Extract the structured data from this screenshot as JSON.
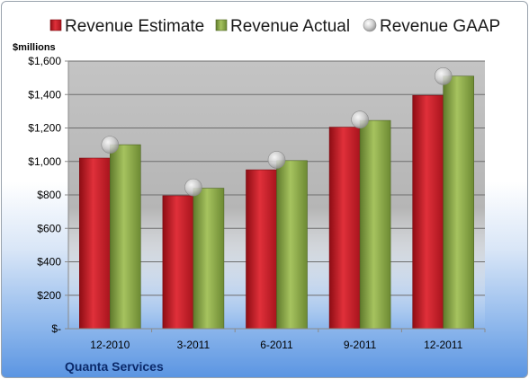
{
  "chart_data": {
    "type": "bar",
    "ylabel": "$millions",
    "company": "Quanta Services",
    "categories": [
      "12-2010",
      "3-2011",
      "6-2011",
      "9-2011",
      "12-2011"
    ],
    "series": [
      {
        "name": "Revenue Estimate",
        "kind": "bar",
        "color": "#cc1f2a",
        "values": [
          1020,
          795,
          950,
          1205,
          1395
        ]
      },
      {
        "name": "Revenue Actual",
        "kind": "bar",
        "color": "#8fae4b",
        "values": [
          1100,
          840,
          1005,
          1245,
          1510
        ]
      },
      {
        "name": "Revenue GAAP",
        "kind": "marker",
        "color": "#c8c8c8",
        "values": [
          1100,
          845,
          1010,
          1250,
          1510
        ]
      }
    ],
    "ylim": [
      0,
      1600
    ],
    "yticks": [
      0,
      200,
      400,
      600,
      800,
      1000,
      1200,
      1400,
      1600
    ],
    "ytick_labels": [
      "$-",
      "$200",
      "$400",
      "$600",
      "$800",
      "$1,000",
      "$1,200",
      "$1,400",
      "$1,600"
    ],
    "grid": true,
    "legend": "top"
  }
}
